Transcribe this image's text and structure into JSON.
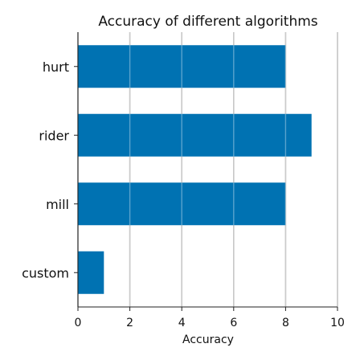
{
  "chart_data": {
    "type": "bar",
    "orientation": "horizontal",
    "title": "Accuracy of different algorithms",
    "xlabel": "Accuracy",
    "ylabel": "",
    "categories": [
      "hurt",
      "rider",
      "mill",
      "custom"
    ],
    "values": [
      8,
      9,
      8,
      1
    ],
    "xlim": [
      0,
      10
    ],
    "xticks": [
      0,
      2,
      4,
      6,
      8,
      10
    ],
    "grid": "vertical",
    "bar_color": "#0072b2"
  }
}
